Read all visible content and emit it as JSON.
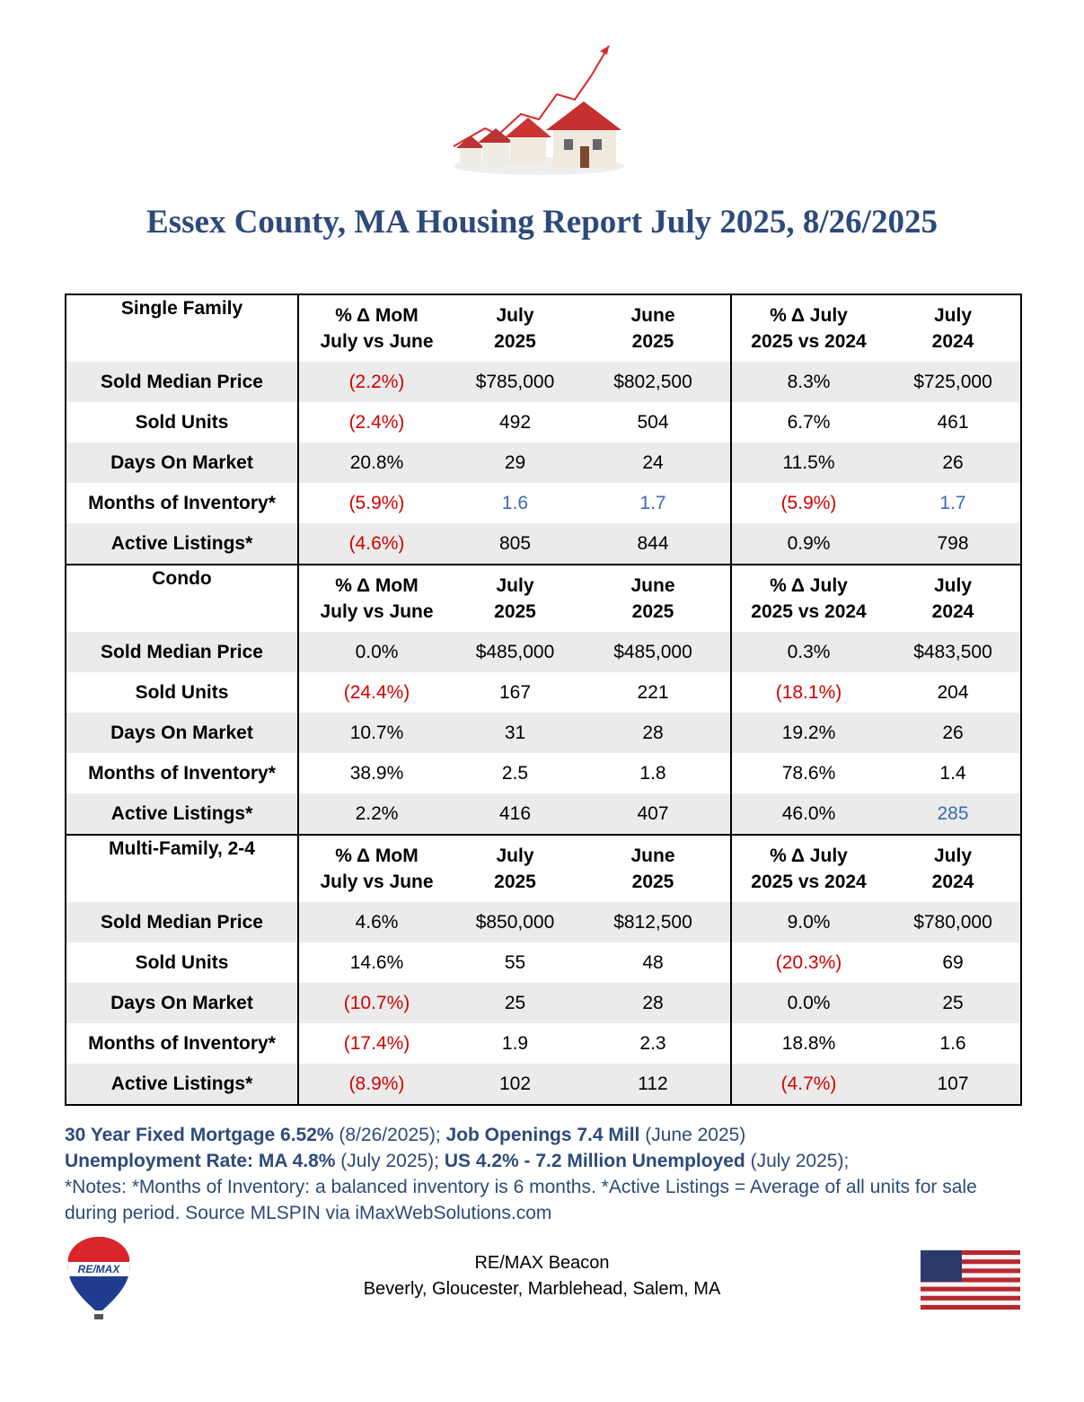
{
  "header": {
    "title": "Essex County, MA Housing Report July 2025, 8/26/2025"
  },
  "sections": [
    {
      "label": "Single Family",
      "columns": [
        [
          "% Δ MoM",
          "July vs June"
        ],
        [
          "July",
          "2025"
        ],
        [
          "June",
          "2025"
        ],
        [
          "% Δ July",
          "2025 vs 2024"
        ],
        [
          "July",
          "2024"
        ]
      ],
      "rows": [
        {
          "label": "Sold Median Price",
          "cells": [
            "(2.2%)",
            "$785,000",
            "$802,500",
            "8.3%",
            "$725,000"
          ]
        },
        {
          "label": "Sold Units",
          "cells": [
            "(2.4%)",
            "492",
            "504",
            "6.7%",
            "461"
          ]
        },
        {
          "label": "Days On Market",
          "cells": [
            "20.8%",
            "29",
            "24",
            "11.5%",
            "26"
          ]
        },
        {
          "label": "Months of Inventory*",
          "cells": [
            "(5.9%)",
            {
              "text": "1.6",
              "color": "#3b6cb0"
            },
            {
              "text": "1.7",
              "color": "#3b6cb0"
            },
            "(5.9%)",
            {
              "text": "1.7",
              "color": "#3b6cb0"
            }
          ]
        },
        {
          "label": "Active Listings*",
          "cells": [
            "(4.6%)",
            "805",
            "844",
            "0.9%",
            "798"
          ]
        }
      ]
    },
    {
      "label": "Condo",
      "columns": [
        [
          "% Δ MoM",
          "July vs June"
        ],
        [
          "July",
          "2025"
        ],
        [
          "June",
          "2025"
        ],
        [
          "% Δ July",
          "2025 vs 2024"
        ],
        [
          "July",
          "2024"
        ]
      ],
      "rows": [
        {
          "label": "Sold Median Price",
          "cells": [
            "0.0%",
            "$485,000",
            "$485,000",
            "0.3%",
            "$483,500"
          ]
        },
        {
          "label": "Sold Units",
          "cells": [
            "(24.4%)",
            "167",
            "221",
            "(18.1%)",
            "204"
          ]
        },
        {
          "label": "Days On Market",
          "cells": [
            "10.7%",
            "31",
            "28",
            "19.2%",
            "26"
          ]
        },
        {
          "label": "Months of Inventory*",
          "cells": [
            "38.9%",
            "2.5",
            "1.8",
            "78.6%",
            "1.4"
          ]
        },
        {
          "label": "Active Listings*",
          "cells": [
            "2.2%",
            "416",
            "407",
            "46.0%",
            {
              "text": "285",
              "color": "#3b6cb0"
            }
          ]
        }
      ]
    },
    {
      "label": "Multi-Family, 2-4",
      "columns": [
        [
          "% Δ MoM",
          "July vs June"
        ],
        [
          "July",
          "2025"
        ],
        [
          "June",
          "2025"
        ],
        [
          "% Δ July",
          "2025 vs 2024"
        ],
        [
          "July",
          "2024"
        ]
      ],
      "rows": [
        {
          "label": "Sold Median Price",
          "cells": [
            "4.6%",
            "$850,000",
            "$812,500",
            "9.0%",
            "$780,000"
          ]
        },
        {
          "label": "Sold Units",
          "cells": [
            "14.6%",
            "55",
            "48",
            "(20.3%)",
            "69"
          ]
        },
        {
          "label": "Days On Market",
          "cells": [
            "(10.7%)",
            "25",
            "28",
            "0.0%",
            "25"
          ]
        },
        {
          "label": "Months of Inventory*",
          "cells": [
            "(17.4%)",
            "1.9",
            "2.3",
            "18.8%",
            "1.6"
          ]
        },
        {
          "label": "Active Listings*",
          "cells": [
            "(8.9%)",
            "102",
            "112",
            "(4.7%)",
            "107"
          ]
        }
      ]
    }
  ],
  "notes": [
    [
      {
        "text": "30 Year Fixed Mortgage 6.52%",
        "bold": true
      },
      {
        "text": " (8/26/2025); ",
        "bold": false
      },
      {
        "text": "Job Openings 7.4 Mill",
        "bold": true
      },
      {
        "text": " (June 2025)",
        "bold": false
      }
    ],
    [
      {
        "text": "Unemployment Rate: MA 4.8%",
        "bold": true
      },
      {
        "text": " (July 2025); ",
        "bold": false
      },
      {
        "text": "US 4.2% - 7.2 Million Unemployed",
        "bold": true
      },
      {
        "text": " (July 2025);",
        "bold": false
      }
    ],
    [
      {
        "text": "*Notes: *Months of Inventory: a balanced inventory is 6 months. *Active Listings = Average of all units for sale during period.  Source MLSPIN via iMaxWebSolutions.com",
        "bold": false
      }
    ]
  ],
  "footer": {
    "logo_text": "RE/MAX",
    "office": "RE/MAX Beacon",
    "locations": "Beverly, Gloucester, Marblehead, Salem, MA"
  }
}
